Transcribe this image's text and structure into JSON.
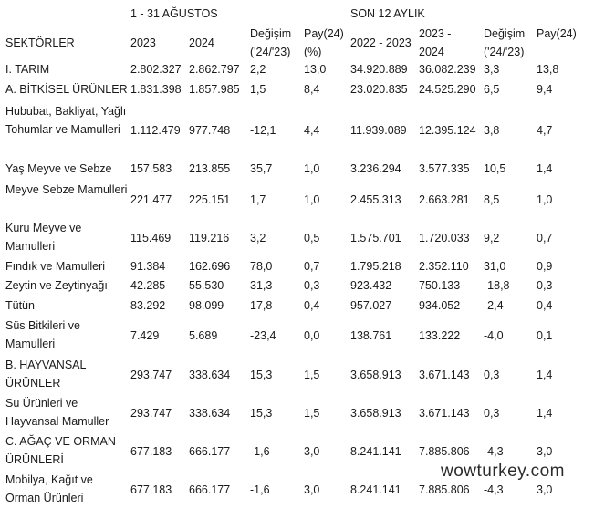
{
  "groups": {
    "period": "1 - 31 AĞUSTOS",
    "last12": "SON 12 AYLIK"
  },
  "headers": {
    "sector": "SEKTÖRLER",
    "y2023": "2023",
    "y2024": "2024",
    "change_top": "Değişim",
    "change_bot": "('24/'23)",
    "share_top": "Pay(24)",
    "share_bot": "(%)",
    "p2223": "2022 - 2023",
    "p2324_top": "2023 -",
    "p2324_bot": "2024",
    "change12_top": "Değişim",
    "change12_bot": "('24/'23)",
    "share12": "Pay(24)"
  },
  "rows": [
    {
      "sector": "I. TARIM",
      "v2023": "2.802.327",
      "v2024": "2.862.797",
      "chg": "2,2",
      "pay": "13,0",
      "p2223": "34.920.889",
      "p2324": "36.082.239",
      "chg12": "3,3",
      "pay12": "13,8"
    },
    {
      "sector": "A. BİTKİSEL ÜRÜNLER",
      "v2023": "1.831.398",
      "v2024": "1.857.985",
      "chg": "1,5",
      "pay": "8,4",
      "p2223": "23.020.835",
      "p2324": "24.525.290",
      "chg12": "6,5",
      "pay12": "9,4"
    },
    {
      "sector": "Hububat, Bakliyat, Yağlı Tohumlar ve Mamulleri",
      "v2023": "1.112.479",
      "v2024": "977.748",
      "chg": "-12,1",
      "pay": "4,4",
      "p2223": "11.939.089",
      "p2324": "12.395.124",
      "chg12": "3,8",
      "pay12": "4,7"
    },
    {
      "sector": "Yaş Meyve ve Sebze",
      "v2023": "157.583",
      "v2024": "213.855",
      "chg": "35,7",
      "pay": "1,0",
      "p2223": "3.236.294",
      "p2324": "3.577.335",
      "chg12": "10,5",
      "pay12": "1,4"
    },
    {
      "sector": "Meyve Sebze Mamulleri",
      "v2023": "221.477",
      "v2024": "225.151",
      "chg": "1,7",
      "pay": "1,0",
      "p2223": "2.455.313",
      "p2324": "2.663.281",
      "chg12": "8,5",
      "pay12": "1,0"
    },
    {
      "sector": "Kuru Meyve ve Mamulleri",
      "v2023": "115.469",
      "v2024": "119.216",
      "chg": "3,2",
      "pay": "0,5",
      "p2223": "1.575.701",
      "p2324": "1.720.033",
      "chg12": "9,2",
      "pay12": "0,7"
    },
    {
      "sector": "Fındık ve Mamulleri",
      "v2023": "91.384",
      "v2024": "162.696",
      "chg": "78,0",
      "pay": "0,7",
      "p2223": "1.795.218",
      "p2324": "2.352.110",
      "chg12": "31,0",
      "pay12": "0,9"
    },
    {
      "sector": "Zeytin ve Zeytinyağı",
      "v2023": "42.285",
      "v2024": "55.530",
      "chg": "31,3",
      "pay": "0,3",
      "p2223": "923.432",
      "p2324": "750.133",
      "chg12": "-18,8",
      "pay12": "0,3"
    },
    {
      "sector": "Tütün",
      "v2023": "83.292",
      "v2024": "98.099",
      "chg": "17,8",
      "pay": "0,4",
      "p2223": "957.027",
      "p2324": "934.052",
      "chg12": "-2,4",
      "pay12": "0,4"
    },
    {
      "sector": "Süs Bitkileri ve Mamulleri",
      "v2023": "7.429",
      "v2024": "5.689",
      "chg": "-23,4",
      "pay": "0,0",
      "p2223": "138.761",
      "p2324": "133.222",
      "chg12": "-4,0",
      "pay12": "0,1"
    },
    {
      "sector": "B. HAYVANSAL ÜRÜNLER",
      "v2023": "293.747",
      "v2024": "338.634",
      "chg": "15,3",
      "pay": "1,5",
      "p2223": "3.658.913",
      "p2324": "3.671.143",
      "chg12": "0,3",
      "pay12": "1,4"
    },
    {
      "sector": "Su Ürünleri ve Hayvansal Mamuller",
      "v2023": "293.747",
      "v2024": "338.634",
      "chg": "15,3",
      "pay": "1,5",
      "p2223": "3.658.913",
      "p2324": "3.671.143",
      "chg12": "0,3",
      "pay12": "1,4"
    },
    {
      "sector": "C. AĞAÇ VE ORMAN ÜRÜNLERİ",
      "v2023": "677.183",
      "v2024": "666.177",
      "chg": "-1,6",
      "pay": "3,0",
      "p2223": "8.241.141",
      "p2324": "7.885.806",
      "chg12": "-4,3",
      "pay12": "3,0"
    },
    {
      "sector": "Mobilya, Kağıt ve Orman Ürünleri",
      "v2023": "677.183",
      "v2024": "666.177",
      "chg": "-1,6",
      "pay": "3,0",
      "p2223": "8.241.141",
      "p2324": "7.885.806",
      "chg12": "-4,3",
      "pay12": "3,0"
    }
  ],
  "watermark": "wowturkey.com"
}
